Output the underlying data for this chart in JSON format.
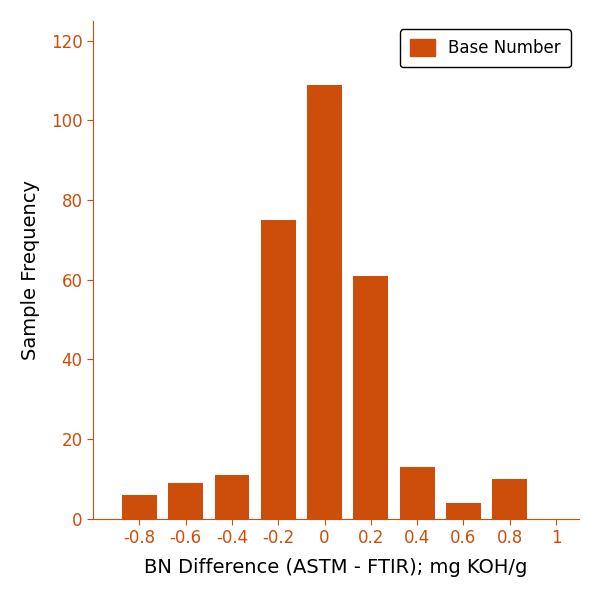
{
  "categories": [
    -0.8,
    -0.6,
    -0.4,
    -0.2,
    0.0,
    0.2,
    0.4,
    0.6,
    0.8
  ],
  "values": [
    6,
    9,
    11,
    75,
    109,
    61,
    13,
    4,
    10
  ],
  "bar_color": "#CC4E0A",
  "bar_width": 0.15,
  "xlabel": "BN Difference (ASTM - FTIR); mg KOH/g",
  "ylabel": "Sample Frequency",
  "xlim": [
    -1.0,
    1.1
  ],
  "ylim": [
    0,
    125
  ],
  "yticks": [
    0,
    20,
    40,
    60,
    80,
    100,
    120
  ],
  "xticks": [
    -0.8,
    -0.6,
    -0.4,
    -0.2,
    0.0,
    0.2,
    0.4,
    0.6,
    0.8,
    1.0
  ],
  "legend_label": "Base Number",
  "legend_fontsize": 12,
  "axis_label_fontsize": 14,
  "tick_fontsize": 12,
  "background_color": "#ffffff",
  "axis_color": "#CC4E0A",
  "spine_color": "#CC4E0A",
  "label_color": "#000000"
}
